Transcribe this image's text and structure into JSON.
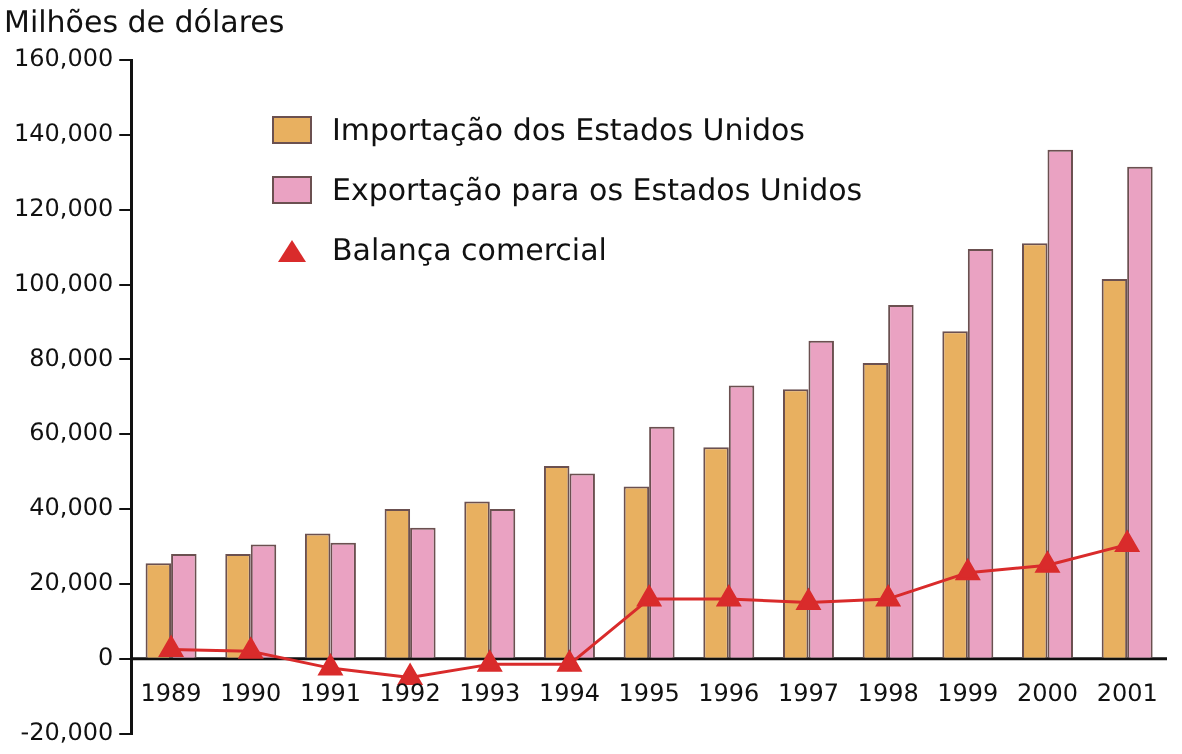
{
  "chart_data": {
    "type": "bar",
    "ylabel": "Milhões de dólares",
    "categories": [
      "1989",
      "1990",
      "1991",
      "1992",
      "1993",
      "1994",
      "1995",
      "1996",
      "1997",
      "1998",
      "1999",
      "2000",
      "2001"
    ],
    "series": [
      {
        "name": "Importação dos Estados Unidos",
        "color": "#e8b060",
        "values": [
          25500,
          28000,
          33500,
          40000,
          42000,
          51500,
          46000,
          56500,
          72000,
          79000,
          87500,
          111000,
          101500
        ]
      },
      {
        "name": "Exportação para os Estados Unidos",
        "color": "#eaa2c2",
        "values": [
          28000,
          30500,
          31000,
          35000,
          40000,
          49500,
          62000,
          73000,
          85000,
          94500,
          109500,
          136000,
          131500
        ]
      },
      {
        "name": "Balança comercial",
        "type": "line",
        "color": "#d92b2b",
        "marker": "triangle",
        "values": [
          2500,
          2000,
          -2500,
          -5000,
          -1500,
          -1500,
          16000,
          16000,
          15000,
          16000,
          23000,
          25000,
          30500
        ]
      }
    ],
    "ylim": [
      -20000,
      160000
    ],
    "yticks": [
      {
        "value": -20000,
        "label": "-20,000"
      },
      0,
      {
        "value": 20000,
        "label": "20,000"
      },
      {
        "value": 40000,
        "label": "40,000"
      },
      {
        "value": 60000,
        "label": "60,000"
      },
      {
        "value": 80000,
        "label": "80,000"
      },
      {
        "value": 100000,
        "label": "100,000"
      },
      {
        "value": 120000,
        "label": "120,000"
      },
      {
        "value": 140000,
        "label": "140,000"
      },
      {
        "value": 160000,
        "label": "160,000"
      }
    ],
    "grid": false,
    "legend": "top left"
  }
}
